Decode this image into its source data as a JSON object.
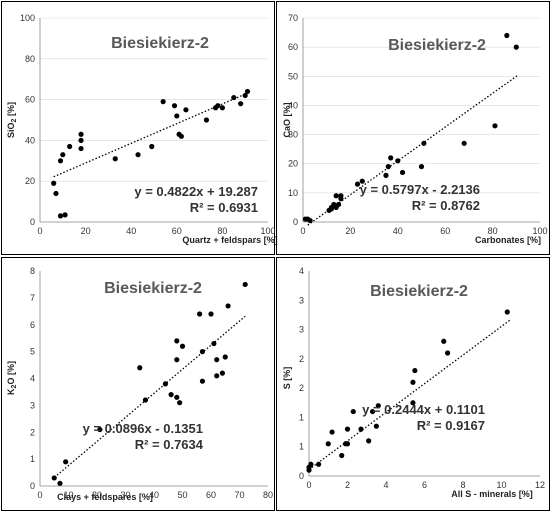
{
  "chart_data": [
    {
      "type": "scatter",
      "title": "Biesiekierz-2",
      "xlabel": "Quartz + feldspars [%]",
      "ylabel": "SiO2 [%]",
      "ylabel_main": "SiO",
      "ylabel_sub": "2",
      "ylabel_tail": " [%]",
      "xlim": [
        0,
        100
      ],
      "ylim": [
        0,
        100
      ],
      "xticks": [
        0,
        20,
        40,
        60,
        80,
        100
      ],
      "yticks": [
        0,
        20,
        40,
        60,
        80,
        100
      ],
      "grid": "horizontal",
      "trendline": {
        "slope": 0.4822,
        "intercept": 19.287,
        "x_range": [
          6,
          92
        ]
      },
      "equation": "y = 0.4822x + 19.287",
      "r2": "R² = 0.6931",
      "points": [
        [
          6,
          19
        ],
        [
          7,
          14
        ],
        [
          9,
          3
        ],
        [
          9,
          30
        ],
        [
          10,
          33
        ],
        [
          11,
          3.5
        ],
        [
          13,
          37
        ],
        [
          18,
          40
        ],
        [
          18,
          43
        ],
        [
          18,
          36
        ],
        [
          33,
          31
        ],
        [
          43,
          33
        ],
        [
          49,
          37
        ],
        [
          54,
          59
        ],
        [
          59,
          57
        ],
        [
          60,
          52
        ],
        [
          61,
          43
        ],
        [
          62,
          42
        ],
        [
          64,
          55
        ],
        [
          73,
          50
        ],
        [
          77,
          56
        ],
        [
          78,
          57
        ],
        [
          80,
          56
        ],
        [
          85,
          61
        ],
        [
          88,
          58
        ],
        [
          90,
          62
        ],
        [
          91,
          64
        ]
      ]
    },
    {
      "type": "scatter",
      "title": "Biesiekierz-2",
      "xlabel": "Carbonates [%]",
      "ylabel": "CaO [%]",
      "ylabel_main": "CaO",
      "ylabel_sub": "",
      "ylabel_tail": " [%]",
      "xlim": [
        0,
        100
      ],
      "ylim": [
        0,
        70
      ],
      "xticks": [
        0,
        20,
        40,
        60,
        80,
        100
      ],
      "yticks": [
        0,
        10,
        20,
        30,
        40,
        50,
        60,
        70
      ],
      "grid": "horizontal",
      "trendline": {
        "slope": 0.5797,
        "intercept": -2.2136,
        "x_range": [
          2,
          91
        ]
      },
      "equation": "y = 0.5797x - 2.2136",
      "r2": "R² = 0.8762",
      "points": [
        [
          1,
          1
        ],
        [
          2,
          1
        ],
        [
          3,
          0.5
        ],
        [
          11,
          4
        ],
        [
          12,
          5
        ],
        [
          12,
          4.5
        ],
        [
          13,
          6
        ],
        [
          14,
          5
        ],
        [
          14,
          9
        ],
        [
          15,
          6
        ],
        [
          16,
          8
        ],
        [
          16,
          9
        ],
        [
          23,
          13
        ],
        [
          25,
          14
        ],
        [
          35,
          16
        ],
        [
          36,
          19
        ],
        [
          37,
          22
        ],
        [
          40,
          21
        ],
        [
          42,
          17
        ],
        [
          50,
          19
        ],
        [
          51,
          27
        ],
        [
          68,
          27
        ],
        [
          81,
          33
        ],
        [
          86,
          64
        ],
        [
          90,
          60
        ]
      ]
    },
    {
      "type": "scatter",
      "title": "Biesiekierz-2",
      "xlabel": "Clays + feldspares [%]",
      "ylabel": "K2O [%]",
      "ylabel_main": "K",
      "ylabel_sub": "2",
      "ylabel_tail": "O [%]",
      "xlim": [
        0,
        80
      ],
      "ylim": [
        0,
        8
      ],
      "xticks": [
        0,
        10,
        20,
        30,
        40,
        50,
        60,
        70,
        80
      ],
      "yticks": [
        0,
        1,
        2,
        3,
        4,
        5,
        6,
        7,
        8
      ],
      "grid": "none",
      "trendline": {
        "slope": 0.0896,
        "intercept": -0.1351,
        "x_range": [
          6,
          72
        ]
      },
      "equation": "y = 0.0896x - 0.1351",
      "r2": "R² = 0.7634",
      "points": [
        [
          5,
          0.3
        ],
        [
          7,
          0.1
        ],
        [
          9,
          0.9
        ],
        [
          21,
          2.1
        ],
        [
          35,
          4.4
        ],
        [
          37,
          3.2
        ],
        [
          44,
          3.8
        ],
        [
          46,
          3.4
        ],
        [
          48,
          3.3
        ],
        [
          48,
          5.4
        ],
        [
          48,
          4.7
        ],
        [
          49,
          3.1
        ],
        [
          50,
          5.2
        ],
        [
          56,
          6.4
        ],
        [
          57,
          3.9
        ],
        [
          57,
          5.0
        ],
        [
          60,
          6.4
        ],
        [
          61,
          5.3
        ],
        [
          62,
          4.7
        ],
        [
          62,
          4.1
        ],
        [
          64,
          4.2
        ],
        [
          65,
          4.8
        ],
        [
          66,
          6.7
        ],
        [
          72,
          7.5
        ]
      ]
    },
    {
      "type": "scatter",
      "title": "Biesiekierz-2",
      "xlabel": "All S - minerals [%]",
      "ylabel": "S [%]",
      "ylabel_main": "S",
      "ylabel_sub": "",
      "ylabel_tail": " [%]",
      "xlim": [
        0,
        12
      ],
      "ylim": [
        0,
        3.5
      ],
      "xticks": [
        0,
        2,
        4,
        6,
        8,
        10,
        12
      ],
      "yticks": [
        0,
        0.5,
        1,
        1.5,
        2,
        2.5,
        3,
        3.5
      ],
      "ytick_labels": [
        "0",
        "1",
        "1",
        "2",
        "2",
        "3",
        "3",
        "4"
      ],
      "grid": "none",
      "trendline": {
        "slope": 0.2444,
        "intercept": 0.1101,
        "x_range": [
          0,
          10.5
        ]
      },
      "equation": "y = 0.2444x + 0.1101",
      "r2": "R² = 0.9167",
      "points": [
        [
          0,
          0.1
        ],
        [
          0,
          0.15
        ],
        [
          0.1,
          0.2
        ],
        [
          0.5,
          0.2
        ],
        [
          1,
          0.55
        ],
        [
          1.2,
          0.75
        ],
        [
          1.7,
          0.35
        ],
        [
          1.9,
          0.55
        ],
        [
          2,
          0.55
        ],
        [
          2,
          0.8
        ],
        [
          2.3,
          1.1
        ],
        [
          2.7,
          0.8
        ],
        [
          3.1,
          0.6
        ],
        [
          3.3,
          1.1
        ],
        [
          3.5,
          0.85
        ],
        [
          3.6,
          1.2
        ],
        [
          5.4,
          1.6
        ],
        [
          5.4,
          1.25
        ],
        [
          5.5,
          1.8
        ],
        [
          7,
          2.3
        ],
        [
          7.2,
          2.1
        ],
        [
          10.3,
          2.8
        ]
      ]
    }
  ]
}
